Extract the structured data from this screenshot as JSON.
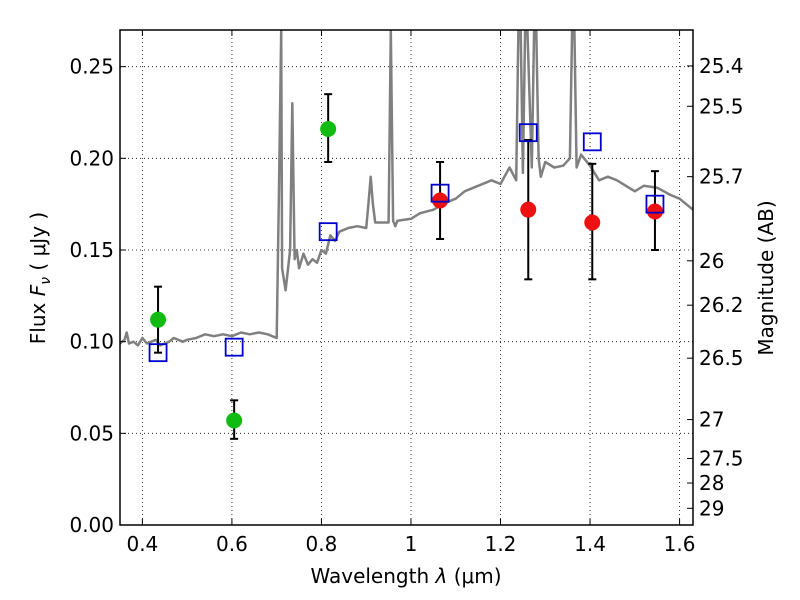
{
  "chart_data": {
    "type": "scatter",
    "title": "",
    "xlabel_prefix": "Wavelength",
    "xlabel_symbol": "λ",
    "xlabel_unit": "(μm)",
    "ylabel_prefix": "Flux",
    "ylabel_symbol": "F",
    "ylabel_subscript": "ν",
    "ylabel_unit": "( μJy )",
    "y2label": "Magnitude (AB)",
    "xlim": [
      0.35,
      1.63
    ],
    "ylim": [
      0.0,
      0.27
    ],
    "xticks": [
      0.4,
      0.6,
      0.8,
      1.0,
      1.2,
      1.4,
      1.6
    ],
    "xtick_labels": [
      "0.4",
      "0.6",
      "0.8",
      "1",
      "1.2",
      "1.4",
      "1.6"
    ],
    "yticks": [
      0.0,
      0.05,
      0.1,
      0.15,
      0.2,
      0.25
    ],
    "ytick_labels": [
      "0.00",
      "0.05",
      "0.10",
      "0.15",
      "0.20",
      "0.25"
    ],
    "mag_ticks": [
      {
        "label": "25.4",
        "flux": 0.2504
      },
      {
        "label": "25.5",
        "flux": 0.2284
      },
      {
        "label": "25.7",
        "flux": 0.19
      },
      {
        "label": "26",
        "flux": 0.1441
      },
      {
        "label": "26.2",
        "flux": 0.1199
      },
      {
        "label": "26.5",
        "flux": 0.091
      },
      {
        "label": "27",
        "flux": 0.0575
      },
      {
        "label": "27.5",
        "flux": 0.0363
      },
      {
        "label": "28",
        "flux": 0.0229
      },
      {
        "label": "29",
        "flux": 0.0091
      }
    ],
    "grid": true,
    "colors": {
      "spectrum": "#808080",
      "green": "#11bb11",
      "red": "#ee1111",
      "blue_square": "#0000cc",
      "errorbar": "#000000"
    },
    "series": [
      {
        "name": "spectrum",
        "kind": "line",
        "x": [
          0.35,
          0.36,
          0.365,
          0.37,
          0.38,
          0.39,
          0.4,
          0.41,
          0.42,
          0.43,
          0.44,
          0.45,
          0.46,
          0.47,
          0.48,
          0.49,
          0.5,
          0.52,
          0.54,
          0.56,
          0.58,
          0.6,
          0.62,
          0.64,
          0.66,
          0.68,
          0.7,
          0.705,
          0.71,
          0.712,
          0.72,
          0.73,
          0.735,
          0.74,
          0.745,
          0.75,
          0.76,
          0.77,
          0.78,
          0.79,
          0.8,
          0.81,
          0.82,
          0.83,
          0.84,
          0.86,
          0.88,
          0.9,
          0.905,
          0.91,
          0.915,
          0.92,
          0.95,
          0.955,
          0.96,
          0.965,
          0.97,
          1.0,
          1.02,
          1.05,
          1.08,
          1.1,
          1.12,
          1.15,
          1.18,
          1.2,
          1.22,
          1.235,
          1.24,
          1.245,
          1.25,
          1.255,
          1.26,
          1.27,
          1.275,
          1.28,
          1.285,
          1.29,
          1.3,
          1.32,
          1.34,
          1.355,
          1.36,
          1.365,
          1.37,
          1.38,
          1.4,
          1.42,
          1.44,
          1.46,
          1.48,
          1.5,
          1.52,
          1.55,
          1.58,
          1.6,
          1.63
        ],
        "y": [
          0.099,
          0.101,
          0.105,
          0.099,
          0.1,
          0.098,
          0.102,
          0.099,
          0.1,
          0.101,
          0.098,
          0.099,
          0.1,
          0.102,
          0.101,
          0.1,
          0.101,
          0.102,
          0.104,
          0.103,
          0.104,
          0.103,
          0.105,
          0.104,
          0.105,
          0.104,
          0.102,
          0.18,
          0.27,
          0.14,
          0.128,
          0.15,
          0.23,
          0.145,
          0.15,
          0.14,
          0.148,
          0.142,
          0.145,
          0.143,
          0.15,
          0.148,
          0.158,
          0.155,
          0.16,
          0.162,
          0.163,
          0.162,
          0.175,
          0.19,
          0.175,
          0.165,
          0.165,
          0.27,
          0.166,
          0.163,
          0.166,
          0.167,
          0.17,
          0.172,
          0.176,
          0.178,
          0.182,
          0.185,
          0.188,
          0.186,
          0.195,
          0.188,
          0.27,
          0.27,
          0.192,
          0.27,
          0.27,
          0.195,
          0.27,
          0.27,
          0.2,
          0.19,
          0.198,
          0.195,
          0.196,
          0.2,
          0.27,
          0.27,
          0.195,
          0.202,
          0.196,
          0.188,
          0.19,
          0.188,
          0.185,
          0.182,
          0.185,
          0.184,
          0.18,
          0.178,
          0.172
        ]
      },
      {
        "name": "green points",
        "kind": "circle",
        "x": [
          0.435,
          0.605,
          0.815
        ],
        "y": [
          0.112,
          0.057,
          0.216
        ],
        "err_low": [
          0.094,
          0.047,
          0.198
        ],
        "err_high": [
          0.13,
          0.068,
          0.235
        ]
      },
      {
        "name": "red points",
        "kind": "circle",
        "x": [
          1.065,
          1.262,
          1.405,
          1.545
        ],
        "y": [
          0.177,
          0.172,
          0.165,
          0.171
        ],
        "err_low": [
          0.156,
          0.134,
          0.134,
          0.15
        ],
        "err_high": [
          0.198,
          0.21,
          0.197,
          0.193
        ]
      },
      {
        "name": "model photometry",
        "kind": "square",
        "x": [
          0.435,
          0.605,
          0.815,
          1.065,
          1.262,
          1.405,
          1.545
        ],
        "y": [
          0.094,
          0.097,
          0.16,
          0.181,
          0.214,
          0.209,
          0.175
        ]
      }
    ]
  }
}
